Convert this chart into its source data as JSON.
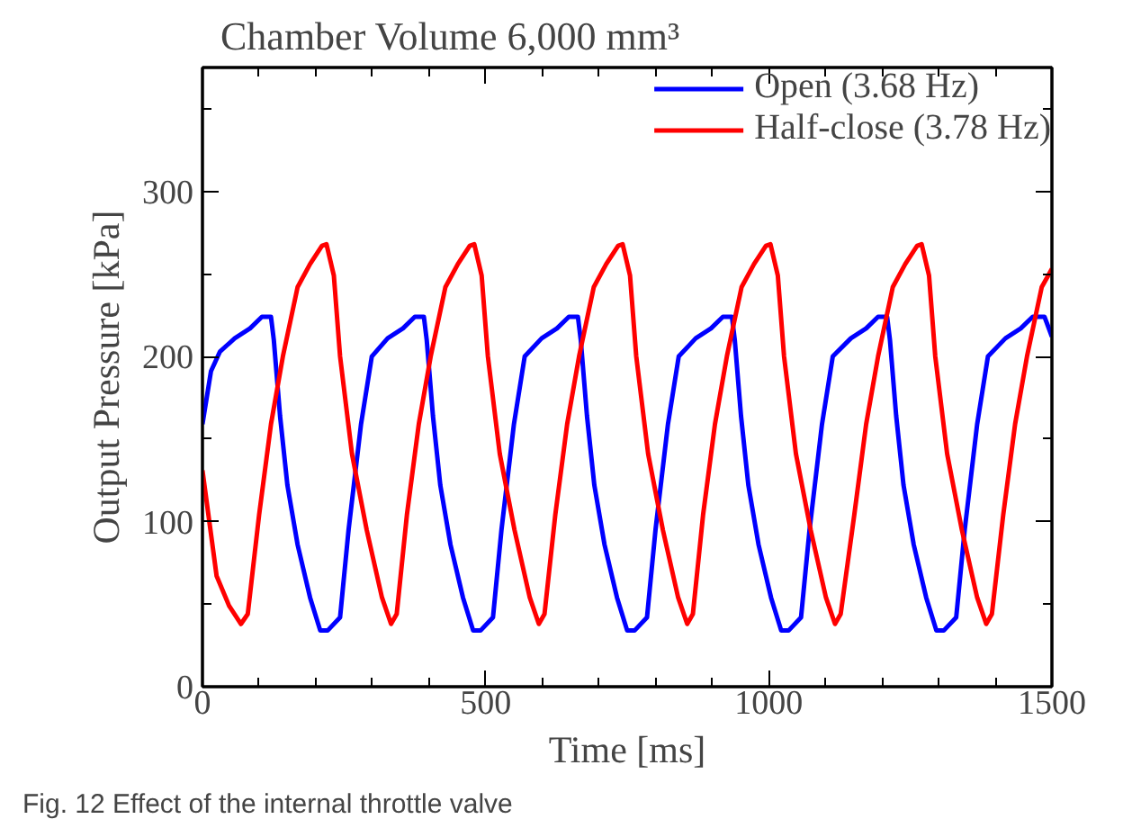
{
  "chart_data": {
    "type": "line",
    "title": "Chamber Volume 6,000 mm³",
    "xlabel": "Time [ms]",
    "ylabel": "Output Pressure [kPa]",
    "annotations": [
      "Fig. 12 Effect of the internal throttle valve"
    ],
    "xlim": [
      0,
      1500
    ],
    "ylim": [
      0,
      375
    ],
    "xticks": [
      0,
      {
        "value": 100,
        "label": null
      },
      {
        "value": 200,
        "label": null
      },
      {
        "value": 300,
        "label": null
      },
      {
        "value": 400,
        "label": null
      },
      500,
      {
        "value": 600,
        "label": null
      },
      {
        "value": 700,
        "label": null
      },
      {
        "value": 800,
        "label": null
      },
      {
        "value": 900,
        "label": null
      },
      1000,
      {
        "value": 1100,
        "label": null
      },
      {
        "value": 1200,
        "label": null
      },
      {
        "value": 1300,
        "label": null
      },
      {
        "value": 1400,
        "label": null
      },
      1500
    ],
    "yticks": [
      0,
      {
        "value": 50,
        "label": null
      },
      100,
      {
        "value": 150,
        "label": null
      },
      200,
      {
        "value": 250,
        "label": null
      },
      300,
      {
        "value": 350,
        "label": null
      }
    ],
    "grid": false,
    "legend": "top right",
    "marker": "none",
    "line_style": "solid",
    "series": [
      {
        "name": "Open (3.68 Hz)",
        "color": "#0000ff",
        "x": [
          0,
          15,
          31,
          57,
          84,
          105,
          121,
          126,
          137,
          150,
          168,
          190,
          208,
          221,
          243,
          258,
          280,
          299,
          327,
          354,
          375,
          391,
          396,
          407,
          420,
          438,
          460,
          478,
          491,
          513,
          528,
          550,
          569,
          599,
          626,
          647,
          663,
          668,
          679,
          692,
          710,
          732,
          750,
          763,
          785,
          800,
          822,
          841,
          871,
          898,
          919,
          935,
          940,
          951,
          964,
          982,
          1004,
          1022,
          1035,
          1057,
          1072,
          1094,
          1113,
          1145,
          1172,
          1193,
          1209,
          1214,
          1225,
          1238,
          1256,
          1278,
          1296,
          1309,
          1331,
          1346,
          1368,
          1387,
          1418,
          1445,
          1466,
          1482,
          1487,
          1500
        ],
        "values": [
          159,
          191,
          203,
          211,
          217,
          224,
          224,
          210,
          164,
          122,
          86,
          54,
          34,
          34,
          42,
          95,
          159,
          200,
          211,
          217,
          224,
          224,
          210,
          164,
          122,
          86,
          54,
          34,
          34,
          42,
          95,
          159,
          200,
          211,
          217,
          224,
          224,
          210,
          164,
          122,
          86,
          54,
          34,
          34,
          42,
          95,
          159,
          200,
          211,
          217,
          224,
          224,
          210,
          164,
          122,
          86,
          54,
          34,
          34,
          42,
          95,
          159,
          200,
          211,
          217,
          224,
          224,
          210,
          164,
          122,
          86,
          54,
          34,
          34,
          42,
          95,
          159,
          200,
          211,
          217,
          224,
          224,
          224,
          212
        ]
      },
      {
        "name": "Half-close (3.78 Hz)",
        "color": "#ff0000",
        "x": [
          0,
          25,
          47,
          68,
          80,
          100,
          121,
          142,
          168,
          190,
          211,
          219,
          232,
          243,
          264,
          290,
          317,
          333,
          343,
          361,
          382,
          403,
          429,
          451,
          472,
          480,
          493,
          504,
          525,
          551,
          578,
          594,
          604,
          623,
          644,
          665,
          691,
          713,
          734,
          742,
          755,
          766,
          787,
          813,
          840,
          856,
          866,
          884,
          905,
          926,
          952,
          974,
          995,
          1003,
          1016,
          1027,
          1048,
          1074,
          1101,
          1117,
          1127,
          1151,
          1172,
          1193,
          1219,
          1241,
          1262,
          1270,
          1283,
          1294,
          1315,
          1341,
          1368,
          1384,
          1394,
          1414,
          1435,
          1456,
          1482,
          1500
        ],
        "values": [
          131,
          67,
          49,
          38,
          44,
          104,
          159,
          200,
          242,
          256,
          267,
          268,
          249,
          200,
          141,
          95,
          54,
          38,
          44,
          104,
          159,
          200,
          242,
          256,
          267,
          268,
          249,
          200,
          141,
          95,
          54,
          38,
          44,
          104,
          159,
          200,
          242,
          256,
          267,
          268,
          249,
          200,
          141,
          95,
          54,
          38,
          44,
          104,
          159,
          200,
          242,
          256,
          267,
          268,
          249,
          200,
          141,
          95,
          54,
          38,
          44,
          104,
          159,
          200,
          242,
          256,
          267,
          268,
          249,
          200,
          141,
          95,
          54,
          38,
          44,
          104,
          159,
          200,
          242,
          253
        ]
      }
    ]
  }
}
